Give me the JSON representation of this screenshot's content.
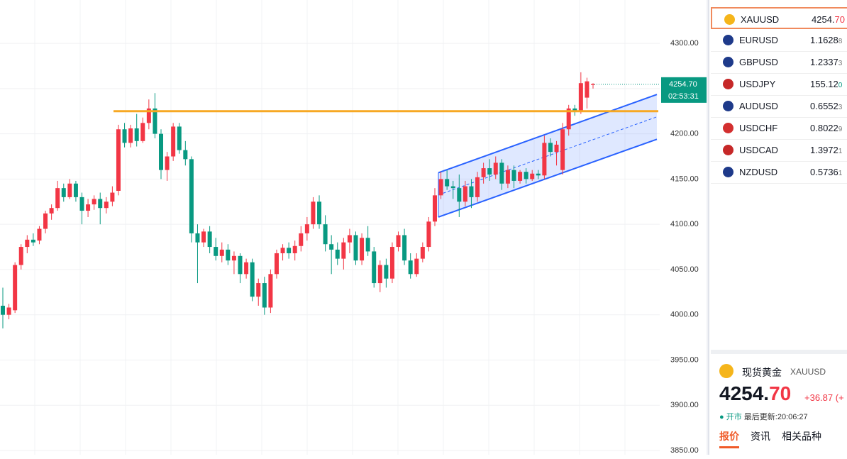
{
  "chart": {
    "type": "candlestick",
    "ylim": [
      3845.3,
      4347.9
    ],
    "yticks": [
      {
        "value": 3850,
        "label": "3850.00"
      },
      {
        "value": 3900,
        "label": "3900.00"
      },
      {
        "value": 3950,
        "label": "3950.00"
      },
      {
        "value": 4000,
        "label": "4000.00"
      },
      {
        "value": 4050,
        "label": "4050.00"
      },
      {
        "value": 4100,
        "label": "4100.00"
      },
      {
        "value": 4150,
        "label": "4150.00"
      },
      {
        "value": 4200,
        "label": "4200.00"
      },
      {
        "value": 4250,
        "label": "4250.00"
      },
      {
        "value": 4300,
        "label": "4300.00"
      }
    ],
    "colors": {
      "up": "#f23645",
      "down": "#089981"
    },
    "candles": [
      [
        4010,
        4030,
        3985,
        4000
      ],
      [
        4000,
        4012,
        3995,
        4008
      ],
      [
        4005,
        4058,
        4002,
        4055
      ],
      [
        4055,
        4078,
        4050,
        4075
      ],
      [
        4075,
        4088,
        4068,
        4083
      ],
      [
        4083,
        4090,
        4076,
        4080
      ],
      [
        4082,
        4098,
        4078,
        4095
      ],
      [
        4095,
        4115,
        4090,
        4112
      ],
      [
        4112,
        4122,
        4105,
        4118
      ],
      [
        4118,
        4148,
        4115,
        4140
      ],
      [
        4140,
        4145,
        4125,
        4130
      ],
      [
        4130,
        4150,
        4128,
        4145
      ],
      [
        4145,
        4148,
        4125,
        4130
      ],
      [
        4130,
        4135,
        4100,
        4115
      ],
      [
        4115,
        4128,
        4108,
        4122
      ],
      [
        4122,
        4132,
        4116,
        4128
      ],
      [
        4128,
        4135,
        4100,
        4118
      ],
      [
        4118,
        4130,
        4112,
        4125
      ],
      [
        4125,
        4142,
        4120,
        4135
      ],
      [
        4137,
        4210,
        4132,
        4205
      ],
      [
        4205,
        4212,
        4185,
        4190
      ],
      [
        4190,
        4210,
        4185,
        4206
      ],
      [
        4206,
        4222,
        4186,
        4192
      ],
      [
        4192,
        4218,
        4190,
        4212
      ],
      [
        4212,
        4238,
        4205,
        4228
      ],
      [
        4228,
        4245,
        4195,
        4200
      ],
      [
        4200,
        4205,
        4150,
        4160
      ],
      [
        4160,
        4180,
        4148,
        4175
      ],
      [
        4175,
        4212,
        4170,
        4208
      ],
      [
        4208,
        4212,
        4178,
        4182
      ],
      [
        4182,
        4192,
        4165,
        4172
      ],
      [
        4172,
        4175,
        4080,
        4090
      ],
      [
        4090,
        4100,
        4035,
        4080
      ],
      [
        4080,
        4095,
        4075,
        4092
      ],
      [
        4092,
        4098,
        4068,
        4075
      ],
      [
        4075,
        4085,
        4060,
        4065
      ],
      [
        4065,
        4080,
        4058,
        4072
      ],
      [
        4072,
        4078,
        4055,
        4060
      ],
      [
        4060,
        4070,
        4045,
        4065
      ],
      [
        4065,
        4068,
        4035,
        4045
      ],
      [
        4045,
        4062,
        4040,
        4058
      ],
      [
        4058,
        4062,
        4015,
        4020
      ],
      [
        4020,
        4040,
        4010,
        4035
      ],
      [
        4035,
        4042,
        4000,
        4008
      ],
      [
        4008,
        4050,
        4002,
        4045
      ],
      [
        4045,
        4072,
        4040,
        4068
      ],
      [
        4068,
        4078,
        4060,
        4074
      ],
      [
        4074,
        4080,
        4062,
        4068
      ],
      [
        4068,
        4082,
        4060,
        4076
      ],
      [
        4076,
        4098,
        4070,
        4090
      ],
      [
        4090,
        4108,
        4082,
        4100
      ],
      [
        4100,
        4130,
        4095,
        4125
      ],
      [
        4125,
        4132,
        4095,
        4100
      ],
      [
        4100,
        4110,
        4070,
        4078
      ],
      [
        4078,
        4088,
        4045,
        4072
      ],
      [
        4072,
        4080,
        4055,
        4062
      ],
      [
        4062,
        4085,
        4050,
        4080
      ],
      [
        4080,
        4095,
        4068,
        4088
      ],
      [
        4088,
        4092,
        4055,
        4060
      ],
      [
        4060,
        4090,
        4055,
        4085
      ],
      [
        4085,
        4098,
        4065,
        4070
      ],
      [
        4070,
        4075,
        4030,
        4035
      ],
      [
        4035,
        4060,
        4025,
        4055
      ],
      [
        4055,
        4062,
        4030,
        4040
      ],
      [
        4040,
        4080,
        4035,
        4075
      ],
      [
        4075,
        4092,
        4070,
        4088
      ],
      [
        4088,
        4095,
        4055,
        4060
      ],
      [
        4060,
        4068,
        4040,
        4045
      ],
      [
        4045,
        4068,
        4042,
        4062
      ],
      [
        4062,
        4080,
        4058,
        4075
      ],
      [
        4075,
        4108,
        4070,
        4103
      ],
      [
        4103,
        4140,
        4098,
        4132
      ],
      [
        4132,
        4158,
        4128,
        4150
      ],
      [
        4150,
        4160,
        4138,
        4142
      ],
      [
        4142,
        4148,
        4128,
        4140
      ],
      [
        4140,
        4155,
        4108,
        4125
      ],
      [
        4125,
        4148,
        4120,
        4142
      ],
      [
        4142,
        4150,
        4118,
        4130
      ],
      [
        4130,
        4158,
        4125,
        4152
      ],
      [
        4152,
        4168,
        4145,
        4162
      ],
      [
        4162,
        4172,
        4148,
        4155
      ],
      [
        4155,
        4175,
        4150,
        4168
      ],
      [
        4168,
        4172,
        4138,
        4145
      ],
      [
        4145,
        4165,
        4140,
        4160
      ],
      [
        4160,
        4165,
        4140,
        4148
      ],
      [
        4148,
        4160,
        4145,
        4158
      ],
      [
        4158,
        4162,
        4145,
        4150
      ],
      [
        4150,
        4160,
        4148,
        4156
      ],
      [
        4156,
        4160,
        4150,
        4154
      ],
      [
        4154,
        4198,
        4150,
        4190
      ],
      [
        4190,
        4195,
        4175,
        4180
      ],
      [
        4180,
        4192,
        4165,
        4188
      ],
      [
        4160,
        4212,
        4155,
        4205
      ],
      [
        4205,
        4232,
        4198,
        4228
      ],
      [
        4228,
        4232,
        4220,
        4224
      ],
      [
        4224,
        4268,
        4222,
        4256
      ],
      [
        4240,
        4262,
        4228,
        4258
      ],
      [
        4254,
        4256,
        4250,
        4255
      ]
    ],
    "horizontal_line": {
      "value": 4225,
      "color": "#f7a823"
    },
    "channel": {
      "upper": [
        4157,
        4243.5
      ],
      "lower": [
        4108,
        4194
      ],
      "color": "#2962ff"
    },
    "last_price": {
      "value": 4254.7,
      "label": "4254.70",
      "countdown": "02:53:31",
      "color": "#089981"
    }
  },
  "watchlist": [
    {
      "symbol": "XAUUSD",
      "price": "4254.",
      "tail": "70"
    },
    {
      "symbol": "EURUSD",
      "price": "1.1628",
      "tail": "8"
    },
    {
      "symbol": "GBPUSD",
      "price": "1.2337",
      "tail": "3"
    },
    {
      "symbol": "USDJPY",
      "price": "155.12",
      "tail": "0"
    },
    {
      "symbol": "AUDUSD",
      "price": "0.6552",
      "tail": "3"
    },
    {
      "symbol": "USDCHF",
      "price": "0.8022",
      "tail": "9"
    },
    {
      "symbol": "USDCAD",
      "price": "1.3972",
      "tail": "1"
    },
    {
      "symbol": "NZDUSD",
      "price": "0.5736",
      "tail": "1"
    }
  ],
  "detail": {
    "name": "现货黄金",
    "symbol": "XAUUSD",
    "price": "4254.",
    "price_tail": "70",
    "change": "+36.87 (+",
    "status": "● 开市",
    "updated": "最后更新:20:06:27",
    "tabs": [
      "报价",
      "资讯",
      "相关品种"
    ]
  }
}
